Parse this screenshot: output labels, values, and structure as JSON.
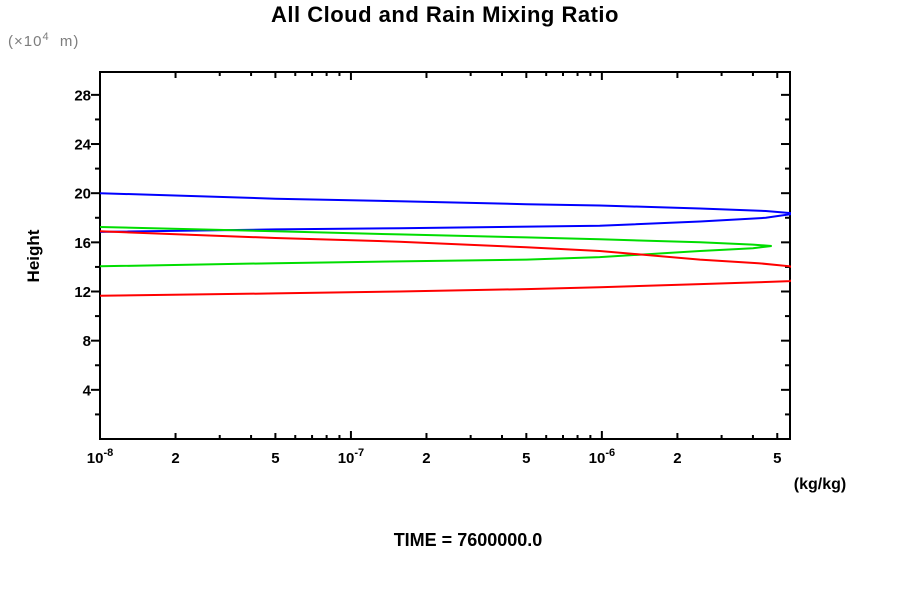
{
  "y_unit": {
    "prefix": "(×10",
    "exp": "4",
    "suffix": "  m)"
  },
  "footer": {
    "time_label": "TIME = 7600000.0"
  },
  "chart_data": {
    "type": "line",
    "title": "All Cloud and Rain Mixing Ratio",
    "xlabel": "(kg/kg)",
    "ylabel": "Height",
    "ylabel_unit": "(×10^4 m)",
    "xscale": "log",
    "xlim": [
      1e-08,
      5.62e-06
    ],
    "ylim": [
      0,
      29.86
    ],
    "grid": false,
    "legend": "none",
    "yticks": {
      "major": [
        4,
        8,
        12,
        16,
        20,
        24,
        28
      ],
      "minor": [
        2,
        6,
        10,
        14,
        18,
        22,
        26
      ]
    },
    "xticks": {
      "decades": [
        {
          "value": 1e-08,
          "base": "10",
          "exp": "-8"
        },
        {
          "value": 1e-07,
          "base": "10",
          "exp": "-7"
        },
        {
          "value": 1e-06,
          "base": "10",
          "exp": "-6"
        }
      ],
      "labeled": [
        {
          "value": 2e-08,
          "label": "2"
        },
        {
          "value": 5e-08,
          "label": "5"
        },
        {
          "value": 2e-07,
          "label": "2"
        },
        {
          "value": 5e-07,
          "label": "5"
        },
        {
          "value": 2e-06,
          "label": "2"
        },
        {
          "value": 5e-06,
          "label": "5"
        }
      ],
      "minor": [
        3e-08,
        4e-08,
        6e-08,
        7e-08,
        8e-08,
        9e-08,
        3e-07,
        4e-07,
        6e-07,
        7e-07,
        8e-07,
        9e-07,
        3e-06,
        4e-06
      ]
    },
    "series": [
      {
        "name": "blue-profile",
        "color": "#0000ff",
        "points": [
          [
            1e-08,
            20.0
          ],
          [
            5e-08,
            19.55
          ],
          [
            1.56e-07,
            19.35
          ],
          [
            5e-07,
            19.1
          ],
          [
            9.8e-07,
            19.0
          ],
          [
            2.46e-06,
            18.75
          ],
          [
            4.5e-06,
            18.55
          ],
          [
            5.9e-06,
            18.35
          ],
          [
            4.5e-06,
            18.0
          ],
          [
            2.46e-06,
            17.7
          ],
          [
            9.8e-07,
            17.35
          ],
          [
            1.56e-07,
            17.15
          ],
          [
            5e-08,
            17.05
          ],
          [
            1e-08,
            16.85
          ]
        ]
      },
      {
        "name": "green-profile",
        "color": "#00dd00",
        "points": [
          [
            1e-08,
            17.25
          ],
          [
            5e-08,
            16.9
          ],
          [
            1.56e-07,
            16.65
          ],
          [
            5e-07,
            16.4
          ],
          [
            9.8e-07,
            16.25
          ],
          [
            2.46e-06,
            16.0
          ],
          [
            4e-06,
            15.82
          ],
          [
            4.75e-06,
            15.7
          ],
          [
            4e-06,
            15.52
          ],
          [
            2.46e-06,
            15.3
          ],
          [
            9.8e-07,
            14.8
          ],
          [
            5e-07,
            14.6
          ],
          [
            1.56e-07,
            14.45
          ],
          [
            5e-08,
            14.3
          ],
          [
            1e-08,
            14.05
          ]
        ]
      },
      {
        "name": "red-profile",
        "color": "#ff0000",
        "points": [
          [
            1e-08,
            16.9
          ],
          [
            5e-08,
            16.35
          ],
          [
            1.56e-07,
            16.05
          ],
          [
            5e-07,
            15.6
          ],
          [
            9.8e-07,
            15.3
          ],
          [
            2.46e-06,
            14.6
          ],
          [
            4.2e-06,
            14.3
          ],
          [
            5.62e-06,
            14.05
          ],
          [
            6.3e-06,
            13.45
          ],
          [
            5.62e-06,
            12.85
          ],
          [
            4.2e-06,
            12.75
          ],
          [
            2.46e-06,
            12.6
          ],
          [
            9.8e-07,
            12.35
          ],
          [
            5e-07,
            12.2
          ],
          [
            1.56e-07,
            12.0
          ],
          [
            5e-08,
            11.85
          ],
          [
            1e-08,
            11.65
          ]
        ]
      }
    ]
  }
}
